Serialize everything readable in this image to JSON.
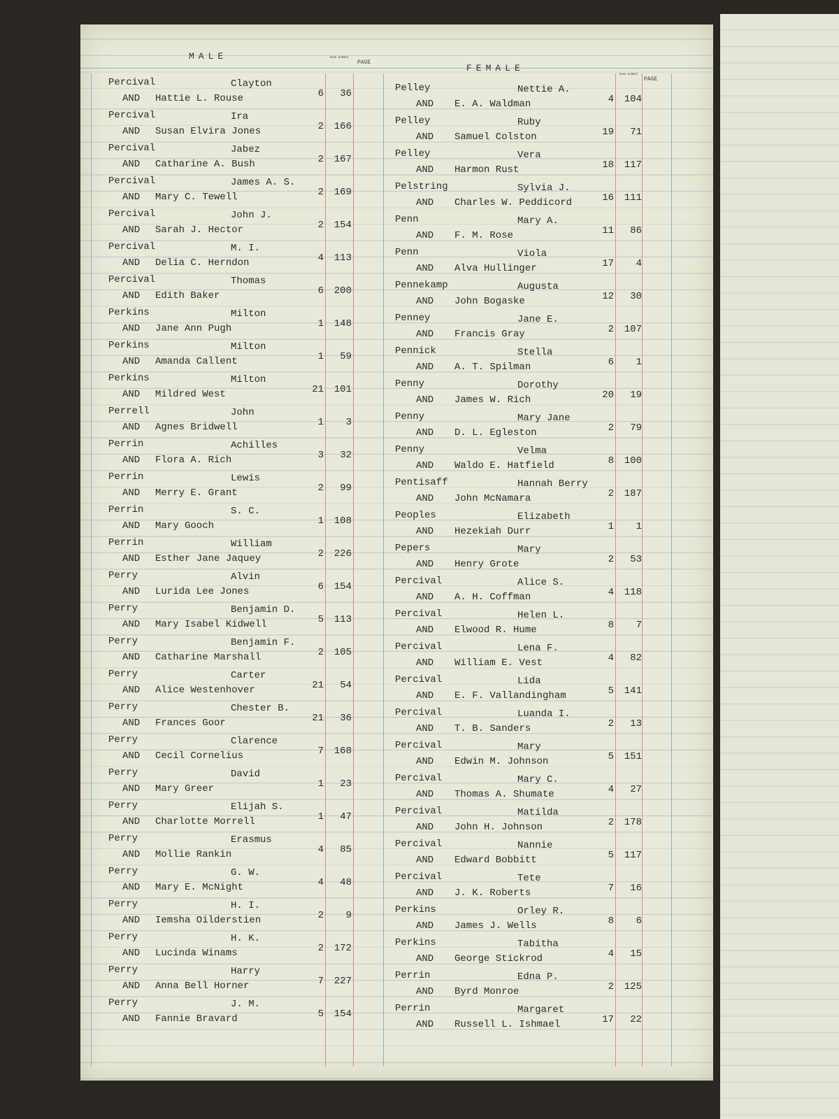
{
  "header": {
    "male": "MALE",
    "book": "BOOK NUMBER",
    "page": "PAGE",
    "female": "FEMALE"
  },
  "connector": "AND",
  "male": [
    {
      "surname": "Percival",
      "given": "Clayton",
      "spouse": "Hattie L. Rouse",
      "book": 6,
      "page": 36
    },
    {
      "surname": "Percival",
      "given": "Ira",
      "spouse": "Susan Elvira Jones",
      "book": 2,
      "page": 166
    },
    {
      "surname": "Percival",
      "given": "Jabez",
      "spouse": "Catharine A. Bush",
      "book": 2,
      "page": 167
    },
    {
      "surname": "Percival",
      "given": "James A. S.",
      "spouse": "Mary C. Tewell",
      "book": 2,
      "page": 169
    },
    {
      "surname": "Percival",
      "given": "John J.",
      "spouse": "Sarah J. Hector",
      "book": 2,
      "page": 154
    },
    {
      "surname": "Percival",
      "given": "M. I.",
      "spouse": "Delia C. Herndon",
      "book": 4,
      "page": 113
    },
    {
      "surname": "Percival",
      "given": "Thomas",
      "spouse": "Edith Baker",
      "book": 6,
      "page": 200
    },
    {
      "surname": "Perkins",
      "given": "Milton",
      "spouse": "Jane Ann Pugh",
      "book": 1,
      "page": 148
    },
    {
      "surname": "Perkins",
      "given": "Milton",
      "spouse": "Amanda Callent",
      "book": 1,
      "page": 59
    },
    {
      "surname": "Perkins",
      "given": "Milton",
      "spouse": "Mildred West",
      "book": 21,
      "page": 101
    },
    {
      "surname": "Perrell",
      "given": "John",
      "spouse": "Agnes Bridwell",
      "book": 1,
      "page": 3
    },
    {
      "surname": "Perrin",
      "given": "Achilles",
      "spouse": "Flora A. Rich",
      "book": 3,
      "page": 32
    },
    {
      "surname": "Perrin",
      "given": "Lewis",
      "spouse": "Merry E. Grant",
      "book": 2,
      "page": 99
    },
    {
      "surname": "Perrin",
      "given": "S. C.",
      "spouse": "Mary Gooch",
      "book": 1,
      "page": 108
    },
    {
      "surname": "Perrin",
      "given": "William",
      "spouse": "Esther Jane Jaquey",
      "book": 2,
      "page": 226
    },
    {
      "surname": "Perry",
      "given": "Alvin",
      "spouse": "Lurida Lee Jones",
      "book": 6,
      "page": 154
    },
    {
      "surname": "Perry",
      "given": "Benjamin D.",
      "spouse": "Mary Isabel Kidwell",
      "book": 5,
      "page": 113
    },
    {
      "surname": "Perry",
      "given": "Benjamin F.",
      "spouse": "Catharine Marshall",
      "book": 2,
      "page": 105
    },
    {
      "surname": "Perry",
      "given": "Carter",
      "spouse": "Alice Westenhover",
      "book": 21,
      "page": 54
    },
    {
      "surname": "Perry",
      "given": "Chester B.",
      "spouse": "Frances Goor",
      "book": 21,
      "page": 36
    },
    {
      "surname": "Perry",
      "given": "Clarence",
      "spouse": "Cecil Cornelius",
      "book": 7,
      "page": 168
    },
    {
      "surname": "Perry",
      "given": "David",
      "spouse": "Mary Greer",
      "book": 1,
      "page": 23
    },
    {
      "surname": "Perry",
      "given": "Elijah S.",
      "spouse": "Charlotte Morrell",
      "book": 1,
      "page": 47
    },
    {
      "surname": "Perry",
      "given": "Erasmus",
      "spouse": "Mollie Rankin",
      "book": 4,
      "page": 85
    },
    {
      "surname": "Perry",
      "given": "G. W.",
      "spouse": "Mary E. McNight",
      "book": 4,
      "page": 48
    },
    {
      "surname": "Perry",
      "given": "H. I.",
      "spouse": "Iemsha Oilderstien",
      "book": 2,
      "page": 9
    },
    {
      "surname": "Perry",
      "given": "H. K.",
      "spouse": "Lucinda Winams",
      "book": 2,
      "page": 172
    },
    {
      "surname": "Perry",
      "given": "Harry",
      "spouse": "Anna Bell Horner",
      "book": 7,
      "page": 227
    },
    {
      "surname": "Perry",
      "given": "J. M.",
      "spouse": "Fannie Bravard",
      "book": 5,
      "page": 154
    }
  ],
  "female": [
    {
      "surname": "Pelley",
      "given": "Nettie A.",
      "spouse": "E. A. Waldman",
      "book": 4,
      "page": 104
    },
    {
      "surname": "Pelley",
      "given": "Ruby",
      "spouse": "Samuel Colston",
      "book": 19,
      "page": 71
    },
    {
      "surname": "Pelley",
      "given": "Vera",
      "spouse": "Harmon Rust",
      "book": 18,
      "page": 117
    },
    {
      "surname": "Pelstring",
      "given": "Sylvia J.",
      "spouse": "Charles W. Peddicord",
      "book": 16,
      "page": 111
    },
    {
      "surname": "Penn",
      "given": "Mary A.",
      "spouse": "F. M. Rose",
      "book": 11,
      "page": 86
    },
    {
      "surname": "Penn",
      "given": "Viola",
      "spouse": "Alva Hullinger",
      "book": 17,
      "page": 4
    },
    {
      "surname": "Pennekamp",
      "given": "Augusta",
      "spouse": "John Bogaske",
      "book": 12,
      "page": 30
    },
    {
      "surname": "Penney",
      "given": "Jane E.",
      "spouse": "Francis Gray",
      "book": 2,
      "page": 107
    },
    {
      "surname": "Pennick",
      "given": "Stella",
      "spouse": "A. T. Spilman",
      "book": 6,
      "page": 1
    },
    {
      "surname": "Penny",
      "given": "Dorothy",
      "spouse": "James W. Rich",
      "book": 20,
      "page": 19
    },
    {
      "surname": "Penny",
      "given": "Mary Jane",
      "spouse": "D. L. Egleston",
      "book": 2,
      "page": 79
    },
    {
      "surname": "Penny",
      "given": "Velma",
      "spouse": "Waldo E. Hatfield",
      "book": 8,
      "page": 100
    },
    {
      "surname": "Pentisaff",
      "given": "Hannah Berry",
      "spouse": "John McNamara",
      "book": 2,
      "page": 187
    },
    {
      "surname": "Peoples",
      "given": "Elizabeth",
      "spouse": "Hezekiah Durr",
      "book": 1,
      "page": 1
    },
    {
      "surname": "Pepers",
      "given": "Mary",
      "spouse": "Henry Grote",
      "book": 2,
      "page": 53
    },
    {
      "surname": "Percival",
      "given": "Alice S.",
      "spouse": "A. H. Coffman",
      "book": 4,
      "page": 118
    },
    {
      "surname": "Percival",
      "given": "Helen L.",
      "spouse": "Elwood R. Hume",
      "book": 8,
      "page": 7
    },
    {
      "surname": "Percival",
      "given": "Lena F.",
      "spouse": "William E. Vest",
      "book": 4,
      "page": 82
    },
    {
      "surname": "Percival",
      "given": "Lida",
      "spouse": "E. F. Vallandingham",
      "book": 5,
      "page": 141
    },
    {
      "surname": "Percival",
      "given": "Luanda I.",
      "spouse": "T. B. Sanders",
      "book": 2,
      "page": 13
    },
    {
      "surname": "Percival",
      "given": "Mary",
      "spouse": "Edwin M. Johnson",
      "book": 5,
      "page": 151
    },
    {
      "surname": "Percival",
      "given": "Mary C.",
      "spouse": "Thomas A. Shumate",
      "book": 4,
      "page": 27
    },
    {
      "surname": "Percival",
      "given": "Matilda",
      "spouse": "John H. Johnson",
      "book": 2,
      "page": 178
    },
    {
      "surname": "Percival",
      "given": "Nannie",
      "spouse": "Edward Bobbitt",
      "book": 5,
      "page": 117
    },
    {
      "surname": "Percival",
      "given": "Tete",
      "spouse": "J. K. Roberts",
      "book": 7,
      "page": 16
    },
    {
      "surname": "Perkins",
      "given": "Orley R.",
      "spouse": "James J. Wells",
      "book": 8,
      "page": 6
    },
    {
      "surname": "Perkins",
      "given": "Tabitha",
      "spouse": "George Stickrod",
      "book": 4,
      "page": 15
    },
    {
      "surname": "Perrin",
      "given": "Edna P.",
      "spouse": "Byrd Monroe",
      "book": 2,
      "page": 125
    },
    {
      "surname": "Perrin",
      "given": "Margaret",
      "spouse": "Russell L. Ishmael",
      "book": 17,
      "page": 22
    }
  ]
}
